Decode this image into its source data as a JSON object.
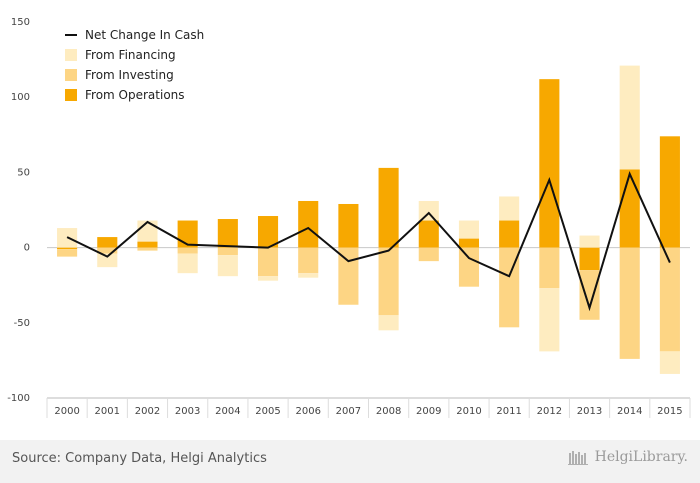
{
  "chart_data": {
    "type": "bar",
    "subtype": "stacked-bar-with-line",
    "categories": [
      "2000",
      "2001",
      "2002",
      "2003",
      "2004",
      "2005",
      "2006",
      "2007",
      "2008",
      "2009",
      "2010",
      "2011",
      "2012",
      "2013",
      "2014",
      "2015"
    ],
    "series": [
      {
        "name": "From Operations",
        "kind": "bar",
        "color": "#f7a800",
        "values": [
          -1,
          7,
          4,
          18,
          19,
          21,
          31,
          29,
          53,
          18,
          6,
          18,
          112,
          -15,
          52,
          74
        ]
      },
      {
        "name": "From Investing",
        "kind": "bar",
        "color": "#fdd584",
        "values": [
          -5,
          -4,
          -2,
          -4,
          -5,
          -19,
          -17,
          -38,
          -45,
          -9,
          -26,
          -53,
          -27,
          -33,
          -74,
          -69
        ]
      },
      {
        "name": "From Financing",
        "kind": "bar",
        "color": "#feecc0",
        "values": [
          13,
          -9,
          14,
          -13,
          -14,
          -3,
          -3,
          0,
          -10,
          13,
          12,
          16,
          -42,
          8,
          69,
          -15
        ]
      },
      {
        "name": "Net Change In Cash",
        "kind": "line",
        "color": "#111111",
        "values": [
          7,
          -6,
          17,
          2,
          1,
          0,
          13,
          -9,
          -2,
          23,
          -7,
          -19,
          45,
          -40,
          49,
          -10
        ]
      }
    ],
    "legend": [
      "Net Change In Cash",
      "From Financing",
      "From Investing",
      "From Operations"
    ],
    "legend_position": "top-left",
    "ylim": [
      -100,
      150
    ],
    "yticks": [
      -100,
      -50,
      0,
      50,
      100,
      150
    ],
    "grid": false
  },
  "footer": {
    "source": "Source: Company Data, Helgi Analytics",
    "logo_text": "HelgiLibrary.",
    "logo_icon": "library-books-icon"
  }
}
